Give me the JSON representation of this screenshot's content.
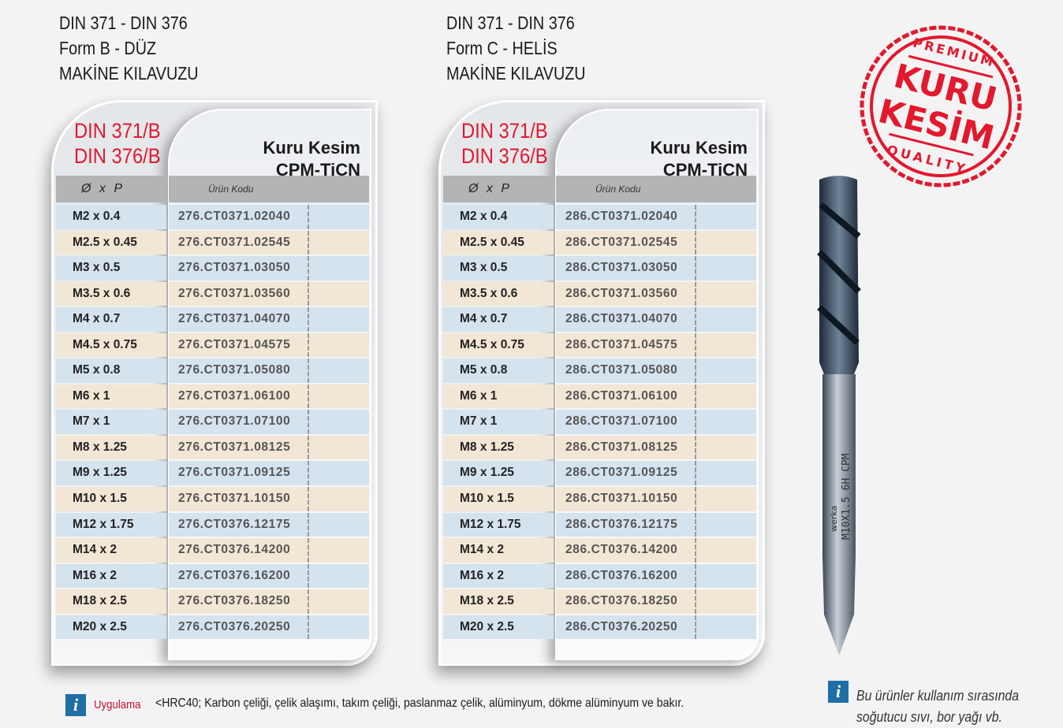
{
  "tables": [
    {
      "title": [
        "DIN 371 - DIN 376",
        "Form B - DÜZ",
        "MAKİNE KILAVUZU"
      ],
      "din": [
        "DIN 371/B",
        "DIN 376/B"
      ],
      "coating": [
        "Kuru Kesim",
        "CPM-TiCN"
      ],
      "col_size": "Ø x P",
      "col_code": "Ürün Kodu",
      "rows": [
        [
          "M2 x 0.4",
          "276.CT0371.02040"
        ],
        [
          "M2.5 x 0.45",
          "276.CT0371.02545"
        ],
        [
          "M3 x 0.5",
          "276.CT0371.03050"
        ],
        [
          "M3.5 x 0.6",
          "276.CT0371.03560"
        ],
        [
          "M4 x 0.7",
          "276.CT0371.04070"
        ],
        [
          "M4.5 x 0.75",
          "276.CT0371.04575"
        ],
        [
          "M5 x 0.8",
          "276.CT0371.05080"
        ],
        [
          "M6 x 1",
          "276.CT0371.06100"
        ],
        [
          "M7 x 1",
          "276.CT0371.07100"
        ],
        [
          "M8 x 1.25",
          "276.CT0371.08125"
        ],
        [
          "M9 x 1.25",
          "276.CT0371.09125"
        ],
        [
          "M10 x 1.5",
          "276.CT0371.10150"
        ],
        [
          "M12 x 1.75",
          "276.CT0376.12175"
        ],
        [
          "M14 x 2",
          "276.CT0376.14200"
        ],
        [
          "M16 x 2",
          "276.CT0376.16200"
        ],
        [
          "M18 x 2.5",
          "276.CT0376.18250"
        ],
        [
          "M20 x 2.5",
          "276.CT0376.20250"
        ]
      ]
    },
    {
      "title": [
        "DIN 371 - DIN 376",
        "Form C - HELİS",
        "MAKİNE KILAVUZU"
      ],
      "din": [
        "DIN 371/B",
        "DIN 376/B"
      ],
      "coating": [
        "Kuru Kesim",
        "CPM-TiCN"
      ],
      "col_size": "Ø x P",
      "col_code": "Ürün Kodu",
      "rows": [
        [
          "M2 x 0.4",
          "286.CT0371.02040"
        ],
        [
          "M2.5 x 0.45",
          "286.CT0371.02545"
        ],
        [
          "M3 x 0.5",
          "286.CT0371.03050"
        ],
        [
          "M3.5 x 0.6",
          "286.CT0371.03560"
        ],
        [
          "M4 x 0.7",
          "286.CT0371.04070"
        ],
        [
          "M4.5 x 0.75",
          "286.CT0371.04575"
        ],
        [
          "M5 x 0.8",
          "286.CT0371.05080"
        ],
        [
          "M6 x 1",
          "286.CT0371.06100"
        ],
        [
          "M7 x 1",
          "286.CT0371.07100"
        ],
        [
          "M8 x 1.25",
          "286.CT0371.08125"
        ],
        [
          "M9 x 1.25",
          "286.CT0371.09125"
        ],
        [
          "M10 x 1.5",
          "286.CT0371.10150"
        ],
        [
          "M12 x 1.75",
          "286.CT0376.12175"
        ],
        [
          "M14 x 2",
          "286.CT0376.14200"
        ],
        [
          "M16 x 2",
          "286.CT0376.16200"
        ],
        [
          "M18 x 2.5",
          "286.CT0376.18250"
        ],
        [
          "M20 x 2.5",
          "286.CT0376.20250"
        ]
      ]
    }
  ],
  "stamp": {
    "top": "PREMIUM",
    "line1": "KURU",
    "line2": "KESİM",
    "bottom": "QUALITY",
    "color": "#e3182d"
  },
  "tap_marking": {
    "brand": "werka",
    "text": "M10X1.5 6H CPM"
  },
  "footer": {
    "icon": "info-icon",
    "label": "Uygulama",
    "text": "<HRC40;  Karbon çeliği, çelik alaşımı, takım çeliği, paslanmaz çelik, alüminyum, dökme alüminyum ve bakır."
  },
  "side_note": {
    "icon": "info-icon",
    "lines": [
      "Bu ürünler kullanım sırasında",
      "soğutucu sıvı, bor yağı vb."
    ]
  }
}
